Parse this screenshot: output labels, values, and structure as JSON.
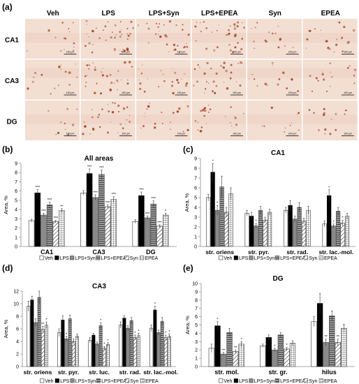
{
  "panel_letters": [
    "(a)",
    "(b)",
    "(c)",
    "(d)",
    "(e)"
  ],
  "micrographs": {
    "columns": [
      "Veh",
      "LPS",
      "LPS+Syn",
      "LPS+EPEA",
      "Syn",
      "EPEA"
    ],
    "rows": [
      "CA1",
      "CA3",
      "DG"
    ],
    "scale_bar": "100 μm",
    "colors": {
      "tissue": "#f3ded2",
      "stain": "#a4472a"
    }
  },
  "legend_labels": [
    "Veh",
    "LPS",
    "LPS+Syn",
    "LPS+EPEA",
    "Syn",
    "EPEA"
  ],
  "colors": {
    "bar_fill": "#ffffff",
    "lps_fill": "#000000",
    "gray_fill": "#8a8a8a",
    "axis": "#8c8c8c",
    "grid": "#dcdcdc"
  },
  "chart_data": [
    {
      "id": "b",
      "type": "bar",
      "title": "All areas",
      "ylabel": "Area, %",
      "ylim": [
        0,
        9
      ],
      "yticks": [
        0,
        1,
        2,
        3,
        4,
        5,
        6,
        7,
        8,
        9
      ],
      "categories": [
        "CA1",
        "CA3",
        "DG"
      ],
      "series": [
        {
          "name": "Veh",
          "values": [
            2.8,
            5.8,
            2.7
          ],
          "errors": [
            0.15,
            0.25,
            0.2
          ],
          "sig": [
            "",
            "",
            ""
          ]
        },
        {
          "name": "LPS",
          "values": [
            5.8,
            7.9,
            5.5
          ],
          "errors": [
            0.35,
            0.5,
            0.4
          ],
          "sig": [
            "***",
            "***",
            "***"
          ]
        },
        {
          "name": "LPS+Syn",
          "values": [
            3.4,
            5.3,
            3.1
          ],
          "errors": [
            0.2,
            0.3,
            0.2
          ],
          "sig": [
            "***",
            "***",
            "***"
          ]
        },
        {
          "name": "LPS+EPEA",
          "values": [
            4.5,
            7.8,
            4.6
          ],
          "errors": [
            0.3,
            0.5,
            0.35
          ],
          "sig": [
            "***",
            "***",
            "***"
          ]
        },
        {
          "name": "Syn",
          "values": [
            2.7,
            4.3,
            2.2
          ],
          "errors": [
            0.15,
            0.2,
            0.15
          ],
          "sig": [
            "***",
            "***",
            "***"
          ]
        },
        {
          "name": "EPEA",
          "values": [
            3.9,
            5.1,
            3.4
          ],
          "errors": [
            0.2,
            0.3,
            0.2
          ],
          "sig": [
            "**",
            "***",
            "*"
          ]
        }
      ]
    },
    {
      "id": "c",
      "type": "bar",
      "title": "CA1",
      "ylabel": "Area, %",
      "ylim": [
        0,
        9
      ],
      "yticks": [
        0,
        1,
        2,
        3,
        4,
        5,
        6,
        7,
        8,
        9
      ],
      "categories": [
        "str. oriens",
        "str. pyr.",
        "str. rad.",
        "str. lac.-mol."
      ],
      "series": [
        {
          "name": "Veh",
          "values": [
            5.0,
            3.4,
            3.7,
            2.3
          ],
          "errors": [
            0.35,
            0.3,
            0.3,
            0.3
          ],
          "sig": [
            "",
            "",
            "",
            ""
          ]
        },
        {
          "name": "LPS",
          "values": [
            7.6,
            3.1,
            4.2,
            5.2
          ],
          "errors": [
            0.9,
            0.4,
            0.5,
            0.6
          ],
          "sig": [
            "*",
            "",
            "",
            "*"
          ]
        },
        {
          "name": "LPS+Syn",
          "values": [
            3.7,
            2.1,
            2.8,
            2.1
          ],
          "errors": [
            0.5,
            0.25,
            0.3,
            0.2
          ],
          "sig": [
            "*",
            "*",
            "",
            "*"
          ]
        },
        {
          "name": "LPS+EPEA",
          "values": [
            6.1,
            3.7,
            4.0,
            3.6
          ],
          "errors": [
            1.1,
            0.4,
            0.5,
            0.4
          ],
          "sig": [
            "",
            "",
            "",
            ""
          ]
        },
        {
          "name": "Syn",
          "values": [
            3.5,
            2.7,
            2.6,
            2.4
          ],
          "errors": [
            0.5,
            0.3,
            0.3,
            0.3
          ],
          "sig": [
            "",
            "",
            "",
            "*"
          ]
        },
        {
          "name": "EPEA",
          "values": [
            5.4,
            3.5,
            3.7,
            3.1
          ],
          "errors": [
            0.6,
            0.3,
            0.4,
            0.3
          ],
          "sig": [
            "",
            "",
            "",
            ""
          ]
        }
      ]
    },
    {
      "id": "d",
      "type": "bar",
      "title": "CA3",
      "ylabel": "Area, %",
      "ylim": [
        0,
        12
      ],
      "yticks": [
        0,
        2,
        4,
        6,
        8,
        10,
        12
      ],
      "categories": [
        "str. oriens",
        "str. pyr.",
        "str. luc.",
        "str. rad.",
        "str. lac.-mol."
      ],
      "series": [
        {
          "name": "Veh",
          "values": [
            9.6,
            5.4,
            4.2,
            6.6,
            6.1
          ],
          "errors": [
            0.8,
            0.6,
            0.4,
            0.5,
            0.5
          ],
          "sig": [
            "",
            "",
            "",
            "",
            ""
          ]
        },
        {
          "name": "LPS",
          "values": [
            10.6,
            7.4,
            5.0,
            7.7,
            9.0
          ],
          "errors": [
            0.6,
            0.7,
            0.3,
            0.4,
            0.6
          ],
          "sig": [
            "",
            "",
            "",
            "",
            "*"
          ]
        },
        {
          "name": "LPS+Syn",
          "values": [
            7.0,
            4.4,
            3.6,
            6.1,
            5.4
          ],
          "errors": [
            0.6,
            0.4,
            0.3,
            0.4,
            0.4
          ],
          "sig": [
            "",
            "*",
            "",
            "",
            ""
          ]
        },
        {
          "name": "LPS+EPEA",
          "values": [
            11.0,
            7.6,
            6.5,
            7.3,
            7.2
          ],
          "errors": [
            1.0,
            0.6,
            0.5,
            0.5,
            0.6
          ],
          "sig": [
            "",
            "",
            "*",
            "",
            ""
          ]
        },
        {
          "name": "Syn",
          "values": [
            5.9,
            4.0,
            2.9,
            4.6,
            4.6
          ],
          "errors": [
            0.5,
            0.4,
            0.3,
            0.4,
            0.4
          ],
          "sig": [
            "**",
            "",
            "*",
            "*",
            "*"
          ]
        },
        {
          "name": "EPEA",
          "values": [
            6.6,
            4.8,
            3.5,
            4.9,
            4.8
          ],
          "errors": [
            0.5,
            0.4,
            0.3,
            0.4,
            0.4
          ],
          "sig": [
            "*",
            "",
            "*",
            "*",
            "*"
          ]
        }
      ]
    },
    {
      "id": "e",
      "type": "bar",
      "title": "DG",
      "ylabel": "Area, %",
      "ylim": [
        0,
        10
      ],
      "yticks": [
        0,
        1,
        2,
        3,
        4,
        5,
        6,
        7,
        8,
        9,
        10
      ],
      "categories": [
        "str. mol.",
        "str. gr.",
        "hilus"
      ],
      "series": [
        {
          "name": "Veh",
          "values": [
            2.2,
            2.5,
            5.4
          ],
          "errors": [
            0.5,
            0.2,
            0.6
          ],
          "sig": [
            "",
            "",
            ""
          ]
        },
        {
          "name": "LPS",
          "values": [
            4.9,
            3.5,
            7.6
          ],
          "errors": [
            0.5,
            0.3,
            1.2
          ],
          "sig": [
            "*",
            "",
            ""
          ]
        },
        {
          "name": "LPS+Syn",
          "values": [
            1.5,
            2.0,
            2.9
          ],
          "errors": [
            0.2,
            0.2,
            0.4
          ],
          "sig": [
            "**",
            "*",
            "**"
          ]
        },
        {
          "name": "LPS+EPEA",
          "values": [
            4.1,
            3.8,
            6.1
          ],
          "errors": [
            0.5,
            0.3,
            0.6
          ],
          "sig": [
            "",
            "",
            ""
          ]
        },
        {
          "name": "Syn",
          "values": [
            1.8,
            2.1,
            2.9
          ],
          "errors": [
            0.2,
            0.2,
            0.4
          ],
          "sig": [
            "**",
            "*",
            "**"
          ]
        },
        {
          "name": "EPEA",
          "values": [
            2.7,
            2.8,
            4.6
          ],
          "errors": [
            0.3,
            0.3,
            0.5
          ],
          "sig": [
            "*",
            "",
            ""
          ]
        }
      ]
    }
  ]
}
